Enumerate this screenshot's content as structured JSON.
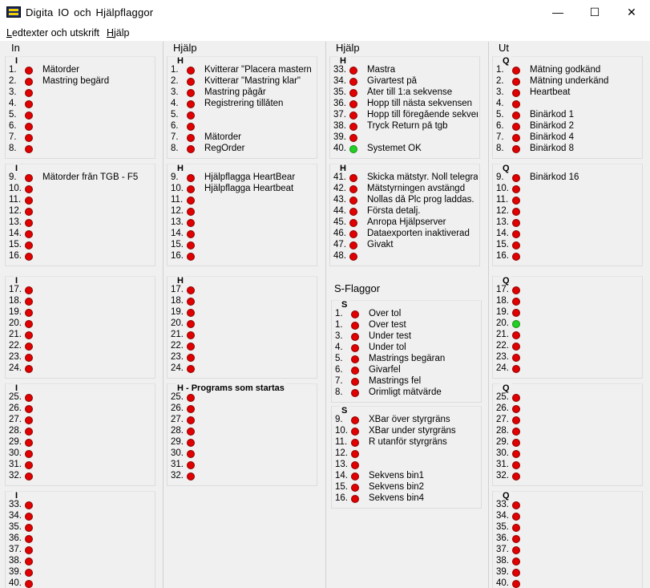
{
  "window": {
    "title": "Digita  IO  och  Hjälpflaggor",
    "minimize": "—",
    "maximize": "☐",
    "close": "✕"
  },
  "menu": [
    {
      "u": "L",
      "rest": "edtexter och utskrift"
    },
    {
      "u": "H",
      "rest": "jälp"
    }
  ],
  "columns": [
    {
      "title": "In",
      "groups": [
        {
          "label": "I",
          "rows": [
            {
              "n": "1.",
              "t": "Mätorder"
            },
            {
              "n": "2.",
              "t": "Mastring begärd"
            },
            {
              "n": "3.",
              "t": ""
            },
            {
              "n": "4.",
              "t": ""
            },
            {
              "n": "5.",
              "t": ""
            },
            {
              "n": "6.",
              "t": ""
            },
            {
              "n": "7.",
              "t": ""
            },
            {
              "n": "8.",
              "t": ""
            }
          ]
        },
        {
          "label": "I",
          "rows": [
            {
              "n": "9.",
              "t": "Mätorder från TGB - F5"
            },
            {
              "n": "10.",
              "t": ""
            },
            {
              "n": "11.",
              "t": ""
            },
            {
              "n": "12.",
              "t": ""
            },
            {
              "n": "13.",
              "t": ""
            },
            {
              "n": "14.",
              "t": ""
            },
            {
              "n": "15.",
              "t": ""
            },
            {
              "n": "16.",
              "t": ""
            }
          ]
        },
        {
          "label": "I",
          "rows": [
            {
              "n": "17.",
              "t": ""
            },
            {
              "n": "18.",
              "t": ""
            },
            {
              "n": "19.",
              "t": ""
            },
            {
              "n": "20.",
              "t": ""
            },
            {
              "n": "21.",
              "t": ""
            },
            {
              "n": "22.",
              "t": ""
            },
            {
              "n": "23.",
              "t": ""
            },
            {
              "n": "24.",
              "t": ""
            }
          ]
        },
        {
          "label": "I",
          "rows": [
            {
              "n": "25.",
              "t": ""
            },
            {
              "n": "26.",
              "t": ""
            },
            {
              "n": "27.",
              "t": ""
            },
            {
              "n": "28.",
              "t": ""
            },
            {
              "n": "29.",
              "t": ""
            },
            {
              "n": "30.",
              "t": ""
            },
            {
              "n": "31.",
              "t": ""
            },
            {
              "n": "32.",
              "t": ""
            }
          ]
        },
        {
          "label": "I",
          "rows": [
            {
              "n": "33.",
              "t": ""
            },
            {
              "n": "34.",
              "t": ""
            },
            {
              "n": "35.",
              "t": ""
            },
            {
              "n": "36.",
              "t": ""
            },
            {
              "n": "37.",
              "t": ""
            },
            {
              "n": "38.",
              "t": ""
            },
            {
              "n": "39.",
              "t": ""
            },
            {
              "n": "40.",
              "t": ""
            }
          ]
        }
      ]
    },
    {
      "title": "Hjälp",
      "groups": [
        {
          "label": "H",
          "rows": [
            {
              "n": "1.",
              "t": "Kvitterar \"Placera mastern ..\""
            },
            {
              "n": "2.",
              "t": "Kvitterar \"Mastring klar\""
            },
            {
              "n": "3.",
              "t": "Mastring pågår"
            },
            {
              "n": "4.",
              "t": "Registrering tillåten"
            },
            {
              "n": "5.",
              "t": ""
            },
            {
              "n": "6.",
              "t": ""
            },
            {
              "n": "7.",
              "t": "Mätorder"
            },
            {
              "n": "8.",
              "t": "RegOrder"
            }
          ]
        },
        {
          "label": "H",
          "rows": [
            {
              "n": "9.",
              "t": "Hjälpflagga HeartBear"
            },
            {
              "n": "10.",
              "t": "Hjälpflagga Heartbeat"
            },
            {
              "n": "11.",
              "t": ""
            },
            {
              "n": "12.",
              "t": ""
            },
            {
              "n": "13.",
              "t": ""
            },
            {
              "n": "14.",
              "t": ""
            },
            {
              "n": "15.",
              "t": ""
            },
            {
              "n": "16.",
              "t": ""
            }
          ]
        },
        {
          "label": "H",
          "rows": [
            {
              "n": "17.",
              "t": ""
            },
            {
              "n": "18.",
              "t": ""
            },
            {
              "n": "19.",
              "t": ""
            },
            {
              "n": "20.",
              "t": ""
            },
            {
              "n": "21.",
              "t": ""
            },
            {
              "n": "22.",
              "t": ""
            },
            {
              "n": "23.",
              "t": ""
            },
            {
              "n": "24.",
              "t": ""
            }
          ]
        },
        {
          "label": "H - Programs som startas",
          "rows": [
            {
              "n": "25.",
              "t": ""
            },
            {
              "n": "26.",
              "t": ""
            },
            {
              "n": "27.",
              "t": ""
            },
            {
              "n": "28.",
              "t": ""
            },
            {
              "n": "29.",
              "t": ""
            },
            {
              "n": "30.",
              "t": ""
            },
            {
              "n": "31.",
              "t": ""
            },
            {
              "n": "32.",
              "t": ""
            }
          ]
        }
      ]
    },
    {
      "title": "Hjälp",
      "groups": [
        {
          "label": "H",
          "rows": [
            {
              "n": "33.",
              "t": "Mastra"
            },
            {
              "n": "34.",
              "t": "Givartest på"
            },
            {
              "n": "35.",
              "t": "Åter till 1:a sekvense"
            },
            {
              "n": "36.",
              "t": "Hopp till nästa sekvensen"
            },
            {
              "n": "37.",
              "t": "Hopp till föregående sekvense"
            },
            {
              "n": "38.",
              "t": "Tryck Return på tgb"
            },
            {
              "n": "39.",
              "t": ""
            },
            {
              "n": "40.",
              "t": "Systemet OK",
              "on": true
            }
          ]
        },
        {
          "label": "H",
          "rows": [
            {
              "n": "41.",
              "t": "Skicka mätstyr. Noll telegram"
            },
            {
              "n": "42.",
              "t": "Mätstyrningen avstängd"
            },
            {
              "n": "43.",
              "t": "Nollas då Plc prog laddas."
            },
            {
              "n": "44.",
              "t": "Första detalj."
            },
            {
              "n": "45.",
              "t": "Anropa Hjälpserver"
            },
            {
              "n": "46.",
              "t": "Dataexporten inaktiverad"
            },
            {
              "n": "47.",
              "t": "Givakt"
            },
            {
              "n": "48.",
              "t": ""
            }
          ]
        }
      ],
      "sflag_title": "S-Flaggor",
      "sgroups": [
        {
          "label": "S",
          "rows": [
            {
              "n": "1.",
              "t": "Över tol"
            },
            {
              "n": "1.",
              "t": "Över test"
            },
            {
              "n": "3.",
              "t": "Under test"
            },
            {
              "n": "4.",
              "t": "Under tol"
            },
            {
              "n": "5.",
              "t": "Mastrings begäran"
            },
            {
              "n": "6.",
              "t": "Givarfel"
            },
            {
              "n": "7.",
              "t": "Mastrings fel"
            },
            {
              "n": "8.",
              "t": "Orimligt mätvärde"
            }
          ]
        },
        {
          "label": "S",
          "rows": [
            {
              "n": "9.",
              "t": "XBar över styrgräns"
            },
            {
              "n": "10.",
              "t": "XBar under styrgräns"
            },
            {
              "n": "11.",
              "t": "R utanför styrgräns"
            },
            {
              "n": "12.",
              "t": ""
            },
            {
              "n": "13.",
              "t": ""
            },
            {
              "n": "14.",
              "t": "Sekvens bin1"
            },
            {
              "n": "15.",
              "t": "Sekvens bin2"
            },
            {
              "n": "16.",
              "t": "Sekvens bin4"
            }
          ]
        }
      ]
    },
    {
      "title": "Ut",
      "groups": [
        {
          "label": "Q",
          "rows": [
            {
              "n": "1.",
              "t": "Mätning godkänd"
            },
            {
              "n": "2.",
              "t": "Mätning underkänd"
            },
            {
              "n": "3.",
              "t": "Heartbeat"
            },
            {
              "n": "4.",
              "t": ""
            },
            {
              "n": "5.",
              "t": "Binärkod 1"
            },
            {
              "n": "6.",
              "t": "Binärkod 2"
            },
            {
              "n": "7.",
              "t": "Binärkod 4"
            },
            {
              "n": "8.",
              "t": "Binärkod 8"
            }
          ]
        },
        {
          "label": "Q",
          "rows": [
            {
              "n": "9.",
              "t": "Binärkod 16"
            },
            {
              "n": "10.",
              "t": ""
            },
            {
              "n": "11.",
              "t": ""
            },
            {
              "n": "12.",
              "t": ""
            },
            {
              "n": "13.",
              "t": ""
            },
            {
              "n": "14.",
              "t": ""
            },
            {
              "n": "15.",
              "t": ""
            },
            {
              "n": "16.",
              "t": ""
            }
          ]
        },
        {
          "label": "Q",
          "rows": [
            {
              "n": "17.",
              "t": ""
            },
            {
              "n": "18.",
              "t": ""
            },
            {
              "n": "19.",
              "t": ""
            },
            {
              "n": "20.",
              "t": "",
              "on": true
            },
            {
              "n": "21.",
              "t": ""
            },
            {
              "n": "22.",
              "t": ""
            },
            {
              "n": "23.",
              "t": ""
            },
            {
              "n": "24.",
              "t": ""
            }
          ]
        },
        {
          "label": "Q",
          "rows": [
            {
              "n": "25.",
              "t": ""
            },
            {
              "n": "26.",
              "t": ""
            },
            {
              "n": "27.",
              "t": ""
            },
            {
              "n": "28.",
              "t": ""
            },
            {
              "n": "29.",
              "t": ""
            },
            {
              "n": "30.",
              "t": ""
            },
            {
              "n": "31.",
              "t": ""
            },
            {
              "n": "32.",
              "t": ""
            }
          ]
        },
        {
          "label": "Q",
          "rows": [
            {
              "n": "33.",
              "t": ""
            },
            {
              "n": "34.",
              "t": ""
            },
            {
              "n": "35.",
              "t": ""
            },
            {
              "n": "36.",
              "t": ""
            },
            {
              "n": "37.",
              "t": ""
            },
            {
              "n": "38.",
              "t": ""
            },
            {
              "n": "39.",
              "t": ""
            },
            {
              "n": "40.",
              "t": ""
            }
          ]
        }
      ]
    }
  ],
  "colors": {
    "off": "#e00000",
    "on": "#22d022"
  }
}
